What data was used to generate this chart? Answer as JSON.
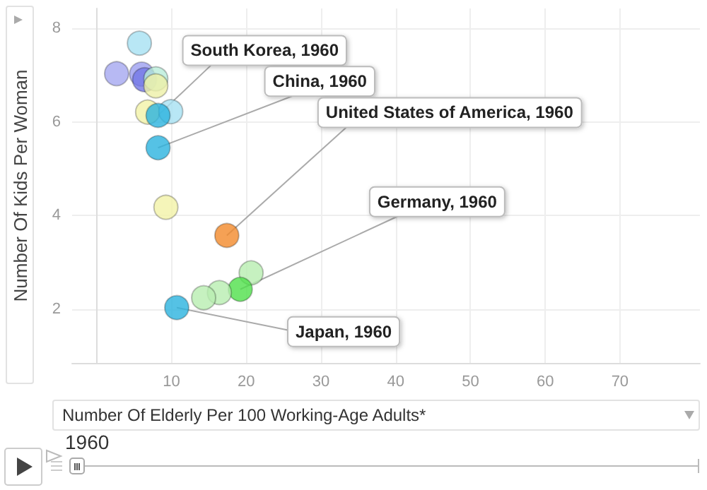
{
  "chart_data": {
    "type": "scatter",
    "xlabel": "Number Of Elderly Per 100 Working-Age Adults*",
    "ylabel": "Number Of Kids Per Woman",
    "xlim": [
      -3.3,
      80.7
    ],
    "ylim": [
      0.86,
      8.42
    ],
    "xticks": [
      10,
      20,
      30,
      40,
      50,
      60,
      70
    ],
    "yticks": [
      2,
      4,
      6,
      8
    ],
    "grid": true,
    "marker": "circle",
    "series": [
      {
        "x": [
          5.7,
          2.65,
          6.0,
          6.4,
          7.9,
          7.9,
          6.8,
          9.9,
          8.2,
          8.2,
          9.25,
          17.4,
          20.65,
          19.2,
          16.4,
          14.3,
          10.7
        ],
        "values": [
          7.68,
          7.03,
          7.02,
          6.9,
          6.92,
          6.77,
          6.21,
          6.22,
          6.14,
          5.45,
          4.18,
          3.58,
          2.78,
          2.43,
          2.36,
          2.25,
          2.04
        ],
        "colors": [
          "#a6e1f2",
          "#a5a8f0",
          "#9c9ff0",
          "#7377e6",
          "#b9ecd9",
          "#eef0a8",
          "#f2f3a8",
          "#a6e1f2",
          "#2ab3df",
          "#2ab3df",
          "#f2f3a8",
          "#f28a2a",
          "#b8eeb0",
          "#4fe04a",
          "#b8eeb0",
          "#b8eeb0",
          "#2ab3df"
        ]
      }
    ],
    "annotations": [
      {
        "text": "South Korea, 1960",
        "x": 8.2,
        "y": 6.14
      },
      {
        "text": "China, 1960",
        "x": 8.2,
        "y": 5.45
      },
      {
        "text": "United States of America, 1960",
        "x": 17.4,
        "y": 3.58
      },
      {
        "text": "Germany, 1960",
        "x": 19.2,
        "y": 2.43
      },
      {
        "text": "Japan, 1960",
        "x": 10.7,
        "y": 2.04
      },
      "1960"
    ]
  }
}
